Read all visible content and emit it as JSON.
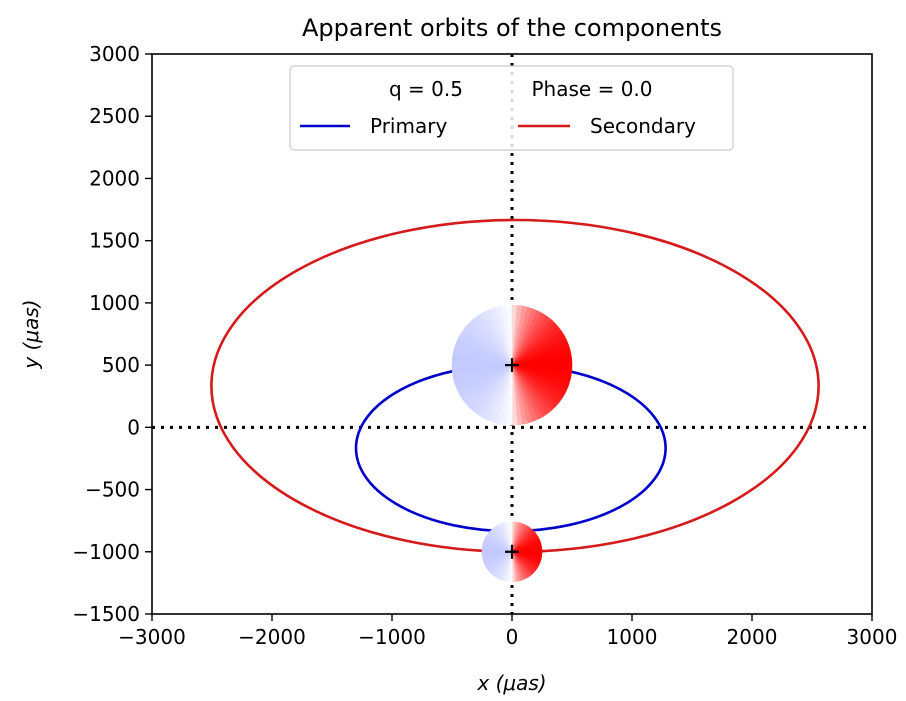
{
  "chart_data": {
    "type": "line",
    "title": "Apparent orbits of the components",
    "xlabel": "x (μas)",
    "ylabel": "y (μas)",
    "xlim": [
      -3000,
      3000
    ],
    "ylim": [
      -1500,
      3000
    ],
    "xticks": [
      {
        "value": -3000,
        "label": "−3000"
      },
      {
        "value": -2000,
        "label": "−2000"
      },
      {
        "value": -1000,
        "label": "−1000"
      },
      {
        "value": 0,
        "label": "0"
      },
      {
        "value": 1000,
        "label": "1000"
      },
      {
        "value": 2000,
        "label": "2000"
      },
      {
        "value": 3000,
        "label": "3000"
      }
    ],
    "yticks": [
      {
        "value": -1500,
        "label": "−1500"
      },
      {
        "value": -1000,
        "label": "−1000"
      },
      {
        "value": -500,
        "label": "−500"
      },
      {
        "value": 0,
        "label": "0"
      },
      {
        "value": 500,
        "label": "500"
      },
      {
        "value": 1000,
        "label": "1000"
      },
      {
        "value": 1500,
        "label": "1500"
      },
      {
        "value": 2000,
        "label": "2000"
      },
      {
        "value": 2500,
        "label": "2500"
      },
      {
        "value": 3000,
        "label": "3000"
      }
    ],
    "grid": false,
    "legend": {
      "placement": "upper center",
      "header_left": "q = 0.5",
      "header_right": "Phase = 0.0"
    },
    "series": [
      {
        "name": "Primary",
        "color": "#0000c8",
        "shape": "ellipse",
        "center": [
          -10,
          -167
        ],
        "semi_axes": [
          1290,
          667
        ]
      },
      {
        "name": "Secondary",
        "color": "#d41a1a",
        "shape": "ellipse",
        "center": [
          25,
          333
        ],
        "semi_axes": [
          2530,
          1333
        ]
      }
    ],
    "reference_lines": [
      {
        "orientation": "vertical",
        "value": 0,
        "style": "dotted",
        "color": "#000000"
      },
      {
        "orientation": "horizontal",
        "value": 0,
        "style": "dotted",
        "color": "#000000"
      }
    ],
    "components": [
      {
        "name": "primary-disk",
        "center": [
          0,
          500
        ],
        "radius": 500,
        "marker": "plus"
      },
      {
        "name": "secondary-disk",
        "center": [
          0,
          -1000
        ],
        "radius": 250,
        "marker": "plus"
      }
    ],
    "disk_colors": {
      "approaching": "#b0b8ff",
      "receding": "#ff0000",
      "center": "#ffffff"
    }
  }
}
